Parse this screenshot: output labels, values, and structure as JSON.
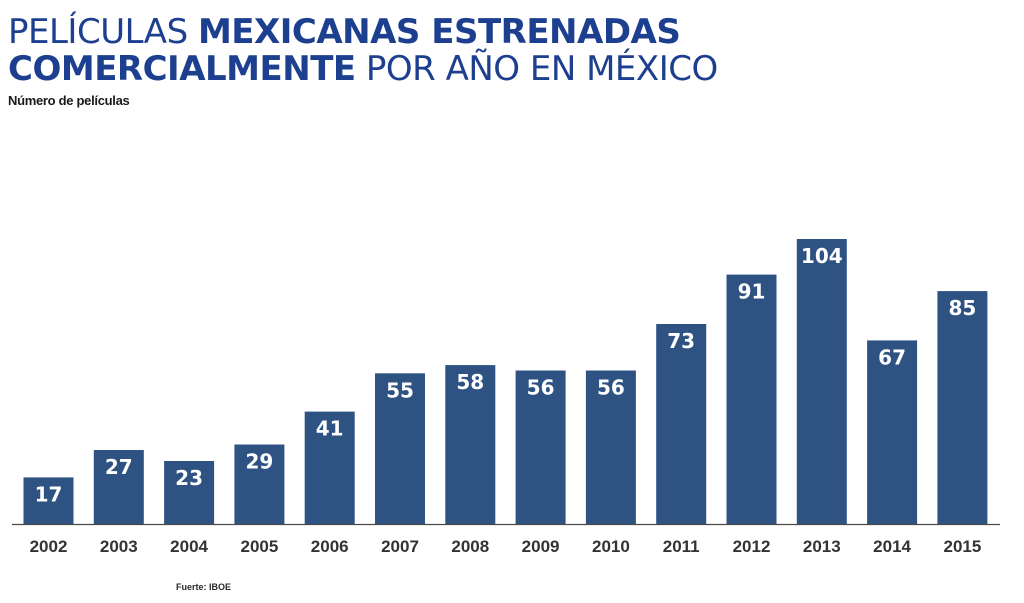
{
  "title": {
    "part1": "PELÍCULAS ",
    "part2_bold": "MEXICANAS ESTRENADAS",
    "part3_bold": "COMERCIALMENTE",
    "part4": " POR AÑO EN MÉXICO"
  },
  "source": "Fuerte: IBOE",
  "colors": {
    "title": "#1d3f8f",
    "bar": "#2e5383",
    "axis": "#4a4a4a",
    "tick_text": "#333333"
  },
  "chart_data": {
    "type": "bar",
    "title": "PELÍCULAS MEXICANAS ESTRENADAS COMERCIALMENTE POR AÑO EN MÉXICO",
    "ylabel": "Número de películas",
    "xlabel": "",
    "categories": [
      "2002",
      "2003",
      "2004",
      "2005",
      "2006",
      "2007",
      "2008",
      "2009",
      "2010",
      "2011",
      "2012",
      "2013",
      "2014",
      "2015"
    ],
    "values": [
      17,
      27,
      23,
      29,
      41,
      55,
      58,
      56,
      56,
      73,
      91,
      104,
      67,
      85
    ],
    "ylim": [
      0,
      104
    ],
    "grid": false,
    "legend": "none",
    "data_labels": "inside-top"
  }
}
